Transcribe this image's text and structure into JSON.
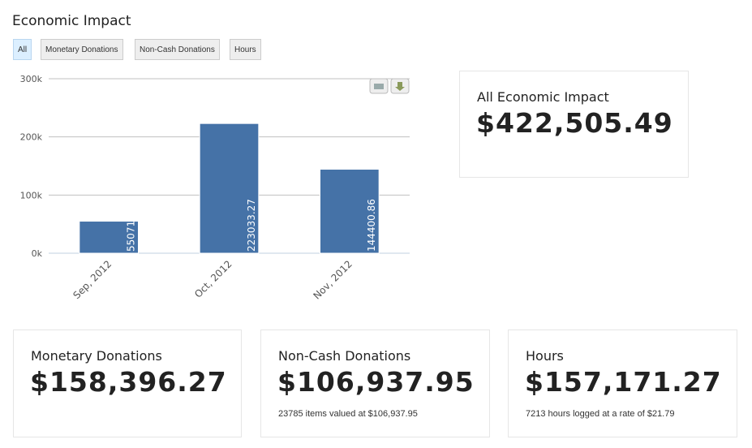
{
  "header": {
    "title": "Economic Impact"
  },
  "filters": [
    "All",
    "Monetary Donations",
    "Non-Cash Donations",
    "Hours"
  ],
  "chart_data": {
    "type": "bar",
    "categories": [
      "Sep, 2012",
      "Oct, 2012",
      "Nov, 2012"
    ],
    "values": [
      55071.36,
      223033.27,
      144400.86
    ],
    "color": "#4572a7",
    "ylim": [
      0,
      300000
    ],
    "yticks": [
      {
        "value": 0,
        "label": "0k"
      },
      {
        "value": 100000,
        "label": "100k"
      },
      {
        "value": 200000,
        "label": "200k"
      },
      {
        "value": 300000,
        "label": "300k"
      }
    ],
    "grid": true
  },
  "cards": [
    {
      "title": "All Economic Impact",
      "amount": "$422,505.49"
    },
    {
      "title": "Monetary Donations",
      "amount": "$158,396.27"
    },
    {
      "title": "Non-Cash Donations",
      "amount": "$106,937.95",
      "note": "23785 items valued at $106,937.95"
    },
    {
      "title": "Hours",
      "amount": "$157,171.27",
      "note": "7213 hours logged at a rate of $21.79"
    }
  ]
}
